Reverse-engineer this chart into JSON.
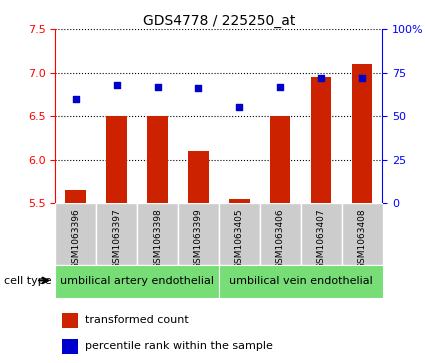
{
  "title": "GDS4778 / 225250_at",
  "samples": [
    "GSM1063396",
    "GSM1063397",
    "GSM1063398",
    "GSM1063399",
    "GSM1063405",
    "GSM1063406",
    "GSM1063407",
    "GSM1063408"
  ],
  "transformed_count": [
    5.65,
    6.5,
    6.5,
    6.1,
    5.55,
    6.5,
    6.95,
    7.1
  ],
  "percentile_rank": [
    60,
    68,
    67,
    66,
    55,
    67,
    72,
    72
  ],
  "ylim_left": [
    5.5,
    7.5
  ],
  "ylim_right": [
    0,
    100
  ],
  "yticks_left": [
    5.5,
    6.0,
    6.5,
    7.0,
    7.5
  ],
  "yticks_right": [
    0,
    25,
    50,
    75,
    100
  ],
  "ytick_labels_right": [
    "0",
    "25",
    "50",
    "75",
    "100%"
  ],
  "bar_color": "#cc2200",
  "scatter_color": "#0000cc",
  "bg_color": "#ffffff",
  "cell_types": [
    "umbilical artery endothelial",
    "umbilical vein endothelial"
  ],
  "cell_bg_color": "#77dd77",
  "xticklabel_bg": "#cccccc",
  "legend_bar_label": "transformed count",
  "legend_scatter_label": "percentile rank within the sample",
  "cell_type_label": "cell type",
  "title_fontsize": 10,
  "axis_fontsize": 8,
  "legend_fontsize": 8,
  "cell_label_fontsize": 8,
  "bar_width": 0.5
}
